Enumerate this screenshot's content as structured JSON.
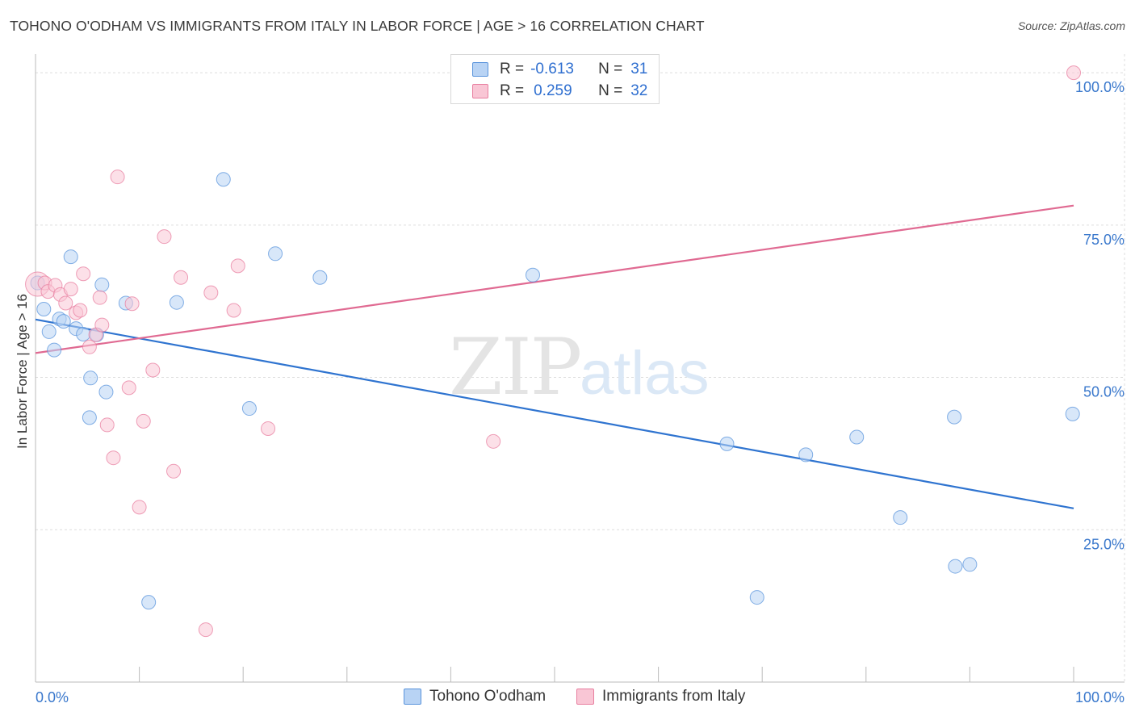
{
  "title": "TOHONO O'ODHAM VS IMMIGRANTS FROM ITALY IN LABOR FORCE | AGE > 16 CORRELATION CHART",
  "source": "Source: ZipAtlas.com",
  "watermark": {
    "zip": "ZIP",
    "atlas": "atlas"
  },
  "legend": {
    "r_label": "R =",
    "n_label": "N =",
    "rows": [
      {
        "r": "-0.613",
        "n": "31"
      },
      {
        "r": "0.259",
        "n": "32"
      }
    ]
  },
  "bottom_legend": [
    "Tohono O'odham",
    "Immigrants from Italy"
  ],
  "colors": {
    "blue_fill": "#b8d3f4",
    "blue_stroke": "#5a94dc",
    "blue_line": "#2f74d0",
    "pink_fill": "#f9c6d5",
    "pink_stroke": "#e87fa0",
    "pink_line": "#e06a92",
    "tick_label": "#3a78cc",
    "grid": "#dddddd"
  },
  "chart_data": {
    "type": "scatter",
    "title": "TOHONO O'ODHAM VS IMMIGRANTS FROM ITALY IN LABOR FORCE | AGE > 16 CORRELATION CHART",
    "xlabel": "",
    "ylabel": "In Labor Force | Age > 16",
    "xlim": [
      0,
      100
    ],
    "ylim": [
      0,
      102
    ],
    "x_tick_labels": [
      "0.0%",
      "100.0%"
    ],
    "y_ticks": [
      25,
      50,
      75,
      100
    ],
    "y_tick_labels": [
      "25.0%",
      "50.0%",
      "75.0%",
      "100.0%"
    ],
    "grid": true,
    "legend_position": "top-center",
    "series": [
      {
        "name": "Tohono O'odham",
        "r": -0.613,
        "n": 31,
        "trend": {
          "x": [
            0,
            100
          ],
          "y": [
            59.5,
            28.5
          ]
        },
        "points": [
          {
            "x": 0.2,
            "y": 65.5
          },
          {
            "x": 0.8,
            "y": 61.2
          },
          {
            "x": 1.3,
            "y": 57.5
          },
          {
            "x": 1.8,
            "y": 54.5
          },
          {
            "x": 2.3,
            "y": 59.6
          },
          {
            "x": 2.7,
            "y": 59.2
          },
          {
            "x": 3.4,
            "y": 69.8
          },
          {
            "x": 3.9,
            "y": 58.0
          },
          {
            "x": 4.6,
            "y": 57.1
          },
          {
            "x": 5.2,
            "y": 43.4
          },
          {
            "x": 5.3,
            "y": 49.9
          },
          {
            "x": 5.9,
            "y": 57.0
          },
          {
            "x": 6.4,
            "y": 65.2
          },
          {
            "x": 6.8,
            "y": 47.6
          },
          {
            "x": 8.7,
            "y": 62.2
          },
          {
            "x": 10.9,
            "y": 13.1
          },
          {
            "x": 13.6,
            "y": 62.3
          },
          {
            "x": 18.1,
            "y": 82.5
          },
          {
            "x": 20.6,
            "y": 44.9
          },
          {
            "x": 23.1,
            "y": 70.3
          },
          {
            "x": 27.4,
            "y": 66.4
          },
          {
            "x": 47.9,
            "y": 66.8
          },
          {
            "x": 66.6,
            "y": 39.1
          },
          {
            "x": 69.5,
            "y": 13.9
          },
          {
            "x": 74.2,
            "y": 37.3
          },
          {
            "x": 79.1,
            "y": 40.2
          },
          {
            "x": 83.3,
            "y": 27.0
          },
          {
            "x": 88.5,
            "y": 43.5
          },
          {
            "x": 88.6,
            "y": 19.0
          },
          {
            "x": 90.0,
            "y": 19.3
          },
          {
            "x": 99.9,
            "y": 44.0
          }
        ]
      },
      {
        "name": "Immigrants from Italy",
        "r": 0.259,
        "n": 32,
        "trend": {
          "x": [
            0,
            100
          ],
          "y": [
            54.0,
            78.2
          ]
        },
        "points": [
          {
            "x": 0.2,
            "y": 65.3
          },
          {
            "x": 0.9,
            "y": 65.5
          },
          {
            "x": 1.2,
            "y": 64.1
          },
          {
            "x": 1.9,
            "y": 65.1
          },
          {
            "x": 2.4,
            "y": 63.6
          },
          {
            "x": 2.9,
            "y": 62.2
          },
          {
            "x": 3.4,
            "y": 64.5
          },
          {
            "x": 3.9,
            "y": 60.6
          },
          {
            "x": 4.3,
            "y": 61.0
          },
          {
            "x": 4.6,
            "y": 67.0
          },
          {
            "x": 5.2,
            "y": 55.0
          },
          {
            "x": 5.8,
            "y": 57.0
          },
          {
            "x": 6.2,
            "y": 63.1
          },
          {
            "x": 6.4,
            "y": 58.6
          },
          {
            "x": 6.9,
            "y": 42.2
          },
          {
            "x": 7.5,
            "y": 36.8
          },
          {
            "x": 7.9,
            "y": 82.9
          },
          {
            "x": 9.0,
            "y": 48.3
          },
          {
            "x": 9.3,
            "y": 62.1
          },
          {
            "x": 10.0,
            "y": 28.7
          },
          {
            "x": 10.4,
            "y": 42.8
          },
          {
            "x": 11.3,
            "y": 51.2
          },
          {
            "x": 12.4,
            "y": 73.1
          },
          {
            "x": 13.3,
            "y": 34.6
          },
          {
            "x": 14.0,
            "y": 66.4
          },
          {
            "x": 16.4,
            "y": 8.6
          },
          {
            "x": 16.9,
            "y": 63.9
          },
          {
            "x": 19.1,
            "y": 61.0
          },
          {
            "x": 19.5,
            "y": 68.3
          },
          {
            "x": 22.4,
            "y": 41.6
          },
          {
            "x": 44.1,
            "y": 39.5
          },
          {
            "x": 100.0,
            "y": 100.0
          }
        ]
      }
    ]
  }
}
